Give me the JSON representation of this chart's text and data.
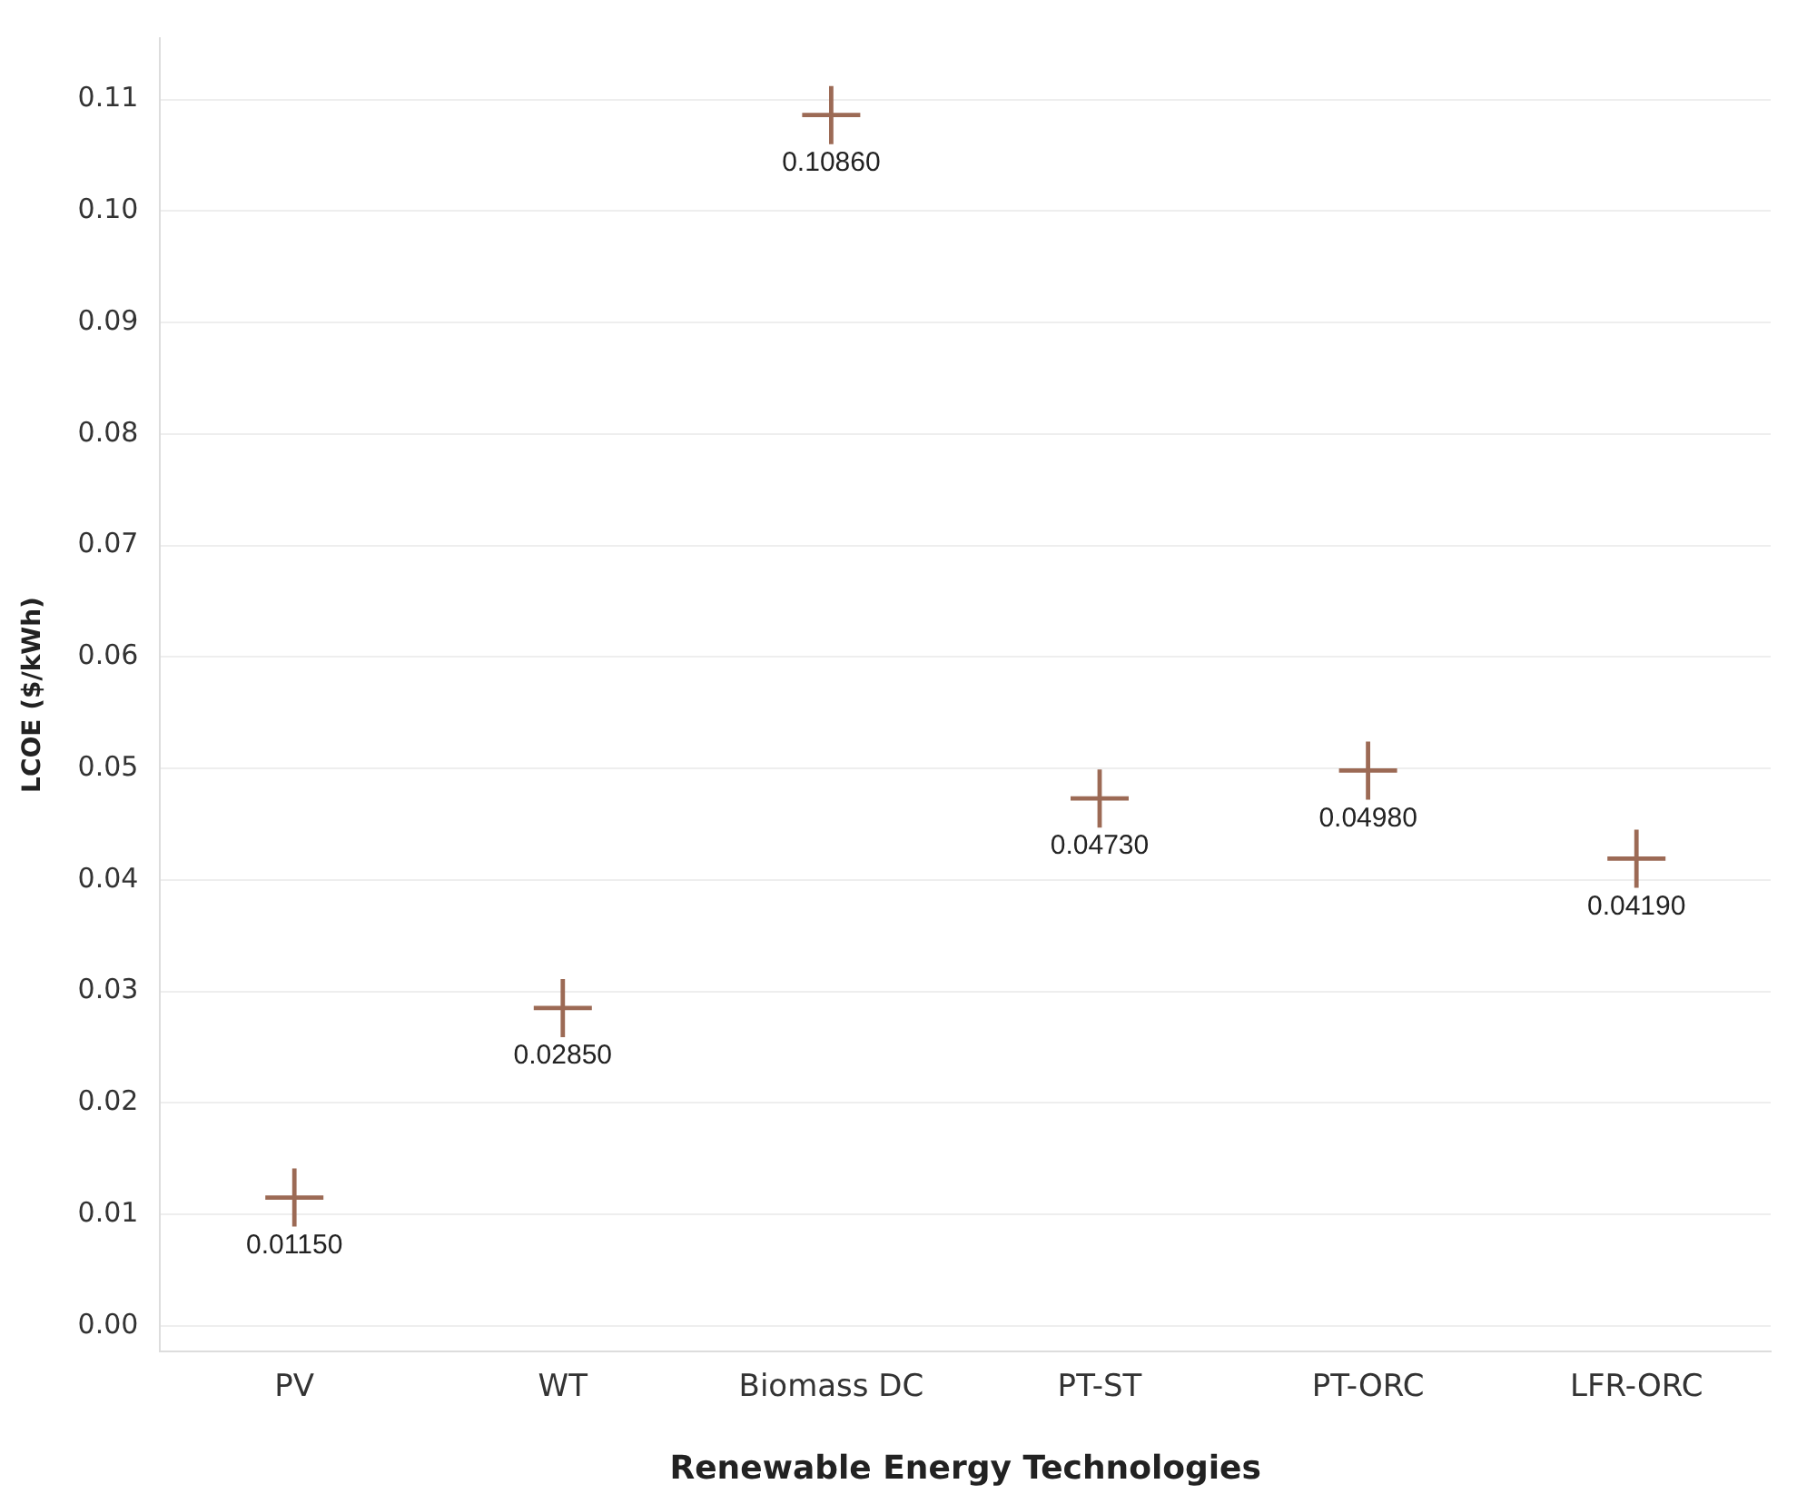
{
  "chart_data": {
    "type": "scatter",
    "xlabel": "Renewable Energy Technologies",
    "ylabel": "LCOE ($/kWh)",
    "categories": [
      "PV",
      "WT",
      "Biomass DC",
      "PT-ST",
      "PT-ORC",
      "LFR-ORC"
    ],
    "values": [
      0.0115,
      0.0285,
      0.1086,
      0.0473,
      0.0498,
      0.0419
    ],
    "value_labels": [
      "0.01150",
      "0.02850",
      "0.10860",
      "0.04730",
      "0.04980",
      "0.04190"
    ],
    "color": "#9c6a55",
    "marker": "cross",
    "grid": "y",
    "ylim": [
      -0.0023,
      0.1155
    ],
    "yticks": [
      {
        "value": 0,
        "label": "0.00"
      },
      {
        "value": 0.01,
        "label": "0.01"
      },
      {
        "value": 0.02,
        "label": "0.02"
      },
      {
        "value": 0.03,
        "label": "0.03"
      },
      {
        "value": 0.04,
        "label": "0.04"
      },
      {
        "value": 0.05,
        "label": "0.05"
      },
      {
        "value": 0.06,
        "label": "0.06"
      },
      {
        "value": 0.07,
        "label": "0.07"
      },
      {
        "value": 0.08,
        "label": "0.08"
      },
      {
        "value": 0.09,
        "label": "0.09"
      },
      {
        "value": 0.1,
        "label": "0.10"
      },
      {
        "value": 0.11,
        "label": "0.11"
      }
    ]
  }
}
